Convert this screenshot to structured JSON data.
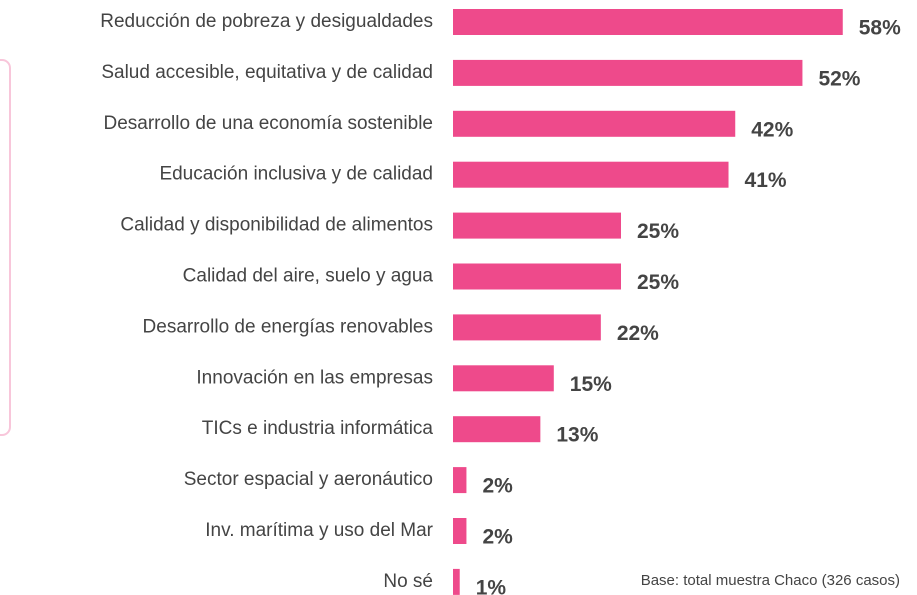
{
  "chart_data": {
    "type": "bar",
    "orientation": "horizontal",
    "categories": [
      "Reducción de pobreza y desigualdades",
      "Salud accesible, equitativa y de calidad",
      "Desarrollo de una economía sostenible",
      "Educación inclusiva y de calidad",
      "Calidad y disponibilidad de alimentos",
      "Calidad del aire, suelo y agua",
      "Desarrollo de energías renovables",
      "Innovación en las empresas",
      "TICs e industria informática",
      "Sector espacial y aeronáutico",
      "Inv. marítima y uso del Mar",
      "No sé"
    ],
    "values": [
      58,
      52,
      42,
      41,
      25,
      25,
      22,
      15,
      13,
      2,
      2,
      1
    ],
    "value_labels": [
      "58%",
      "52%",
      "42%",
      "41%",
      "25%",
      "25%",
      "22%",
      "15%",
      "13%",
      "2%",
      "2%",
      "1%"
    ],
    "color": "#ee4a8b",
    "annotation": "Base: total muestra Chaco (326 casos)"
  }
}
